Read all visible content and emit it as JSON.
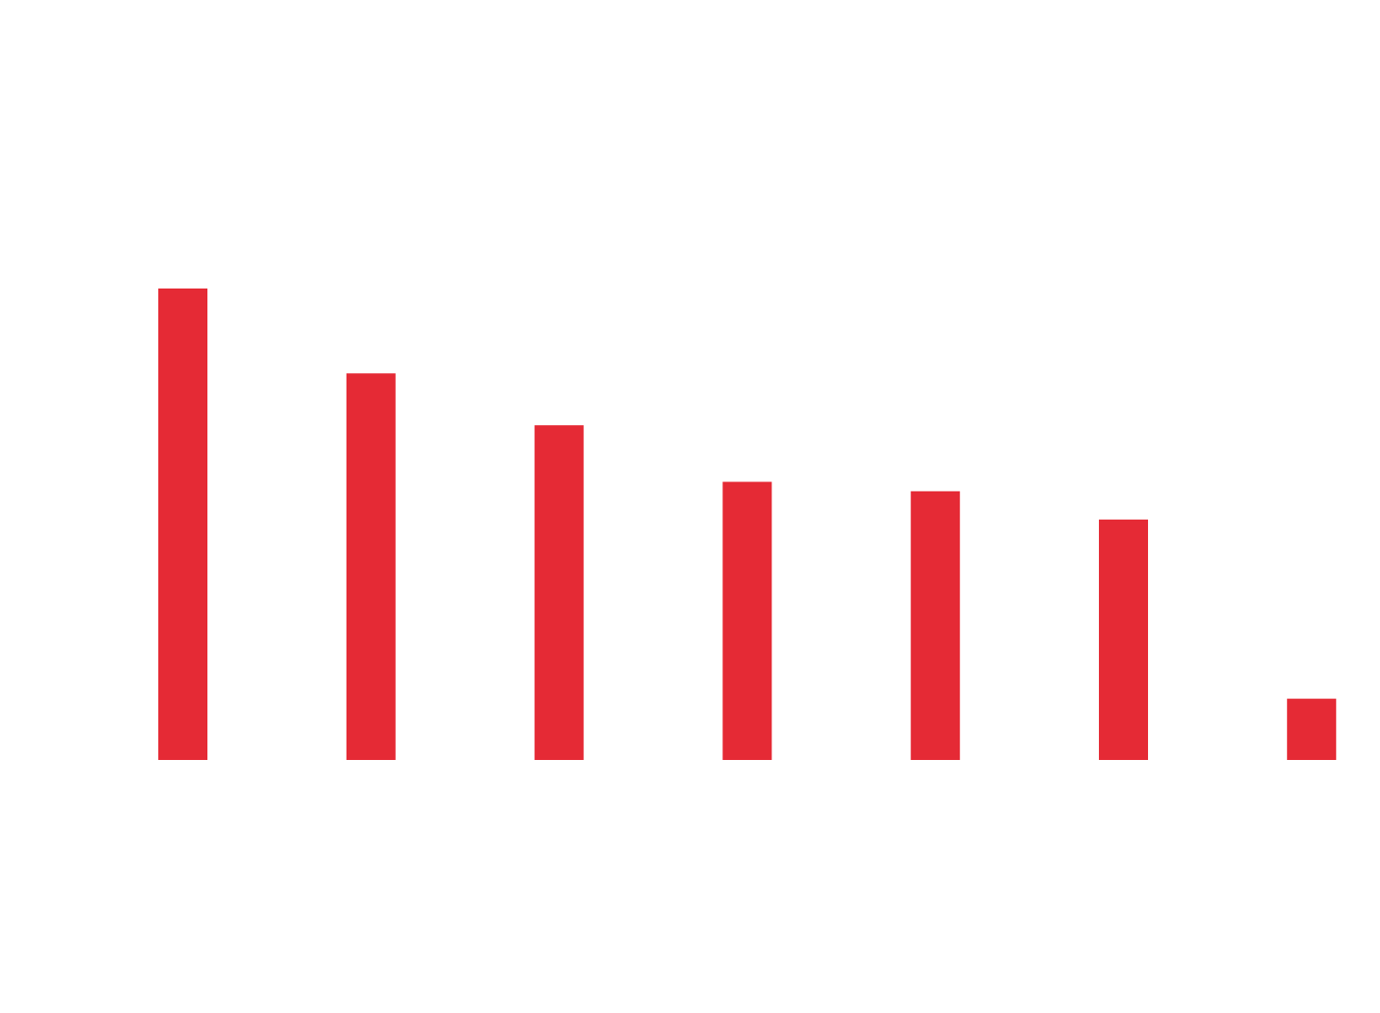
{
  "chart_data": {
    "type": "bar",
    "categories": [
      null,
      null,
      null,
      null,
      null,
      null,
      null
    ],
    "values": [
      100,
      82,
      71,
      59,
      57,
      51,
      13
    ],
    "color": "#e52a35",
    "ylim": [
      0,
      100
    ]
  }
}
